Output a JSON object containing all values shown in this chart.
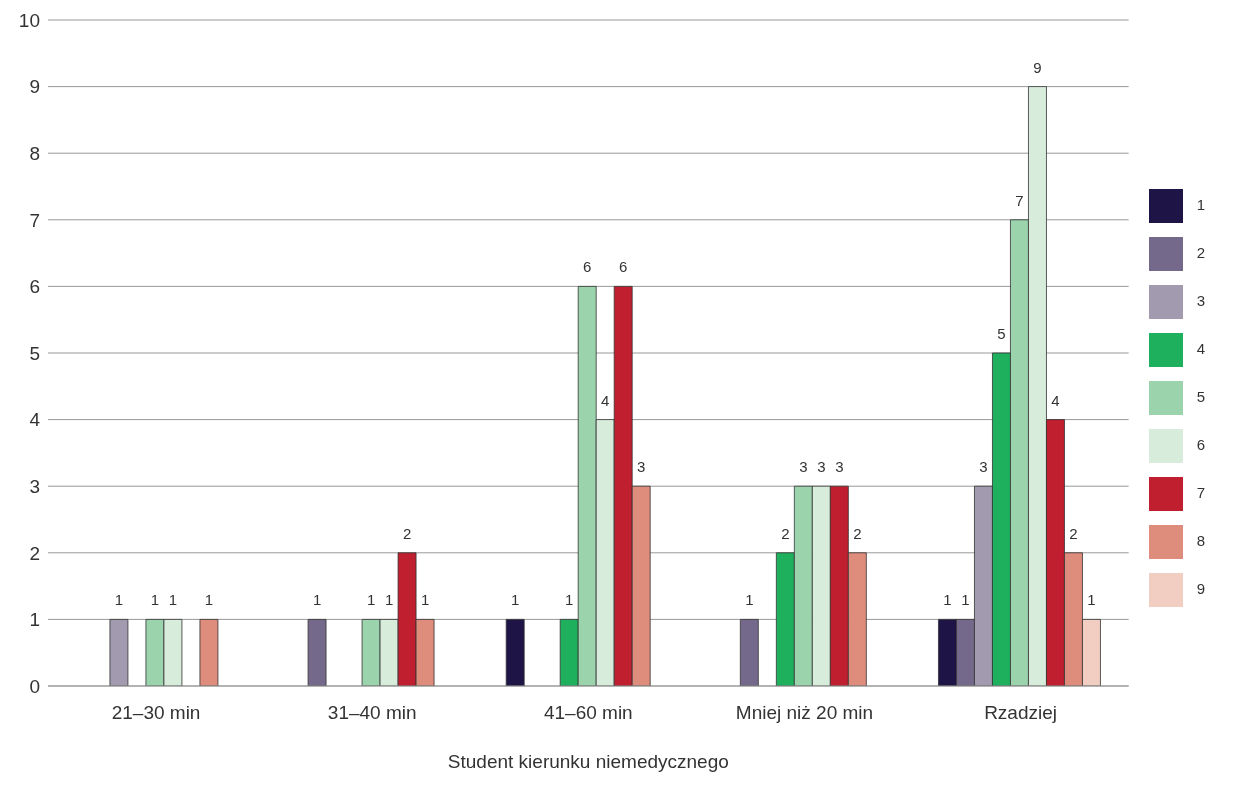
{
  "chart_data": {
    "type": "bar",
    "xlabel": "Student kierunku niemedycznego",
    "categories": [
      "21–30 min",
      "31–40 min",
      "41–60 min",
      "Mniej niż 20 min",
      "Rzadziej"
    ],
    "series": [
      {
        "name": "1",
        "color": "#1f1446",
        "values": [
          null,
          null,
          1,
          null,
          1
        ]
      },
      {
        "name": "2",
        "color": "#74698a",
        "values": [
          null,
          1,
          null,
          1,
          1
        ]
      },
      {
        "name": "3",
        "color": "#a29aae",
        "values": [
          1,
          null,
          null,
          null,
          3
        ]
      },
      {
        "name": "4",
        "color": "#1fb05e",
        "values": [
          null,
          null,
          1,
          2,
          5
        ]
      },
      {
        "name": "5",
        "color": "#9ad3ac",
        "values": [
          1,
          1,
          6,
          3,
          7
        ]
      },
      {
        "name": "6",
        "color": "#d8ecdc",
        "values": [
          1,
          1,
          4,
          3,
          9
        ]
      },
      {
        "name": "7",
        "color": "#c01f2f",
        "values": [
          null,
          2,
          6,
          3,
          4
        ]
      },
      {
        "name": "8",
        "color": "#de8c7b",
        "values": [
          1,
          1,
          3,
          2,
          2
        ]
      },
      {
        "name": "9",
        "color": "#f2cdc2",
        "values": [
          null,
          null,
          null,
          null,
          1
        ]
      }
    ],
    "ylim": [
      0,
      10
    ],
    "yticks": [
      0,
      1,
      2,
      3,
      4,
      5,
      6,
      7,
      8,
      9,
      10
    ],
    "grid": "y",
    "legend": "right",
    "data_labels": true
  }
}
